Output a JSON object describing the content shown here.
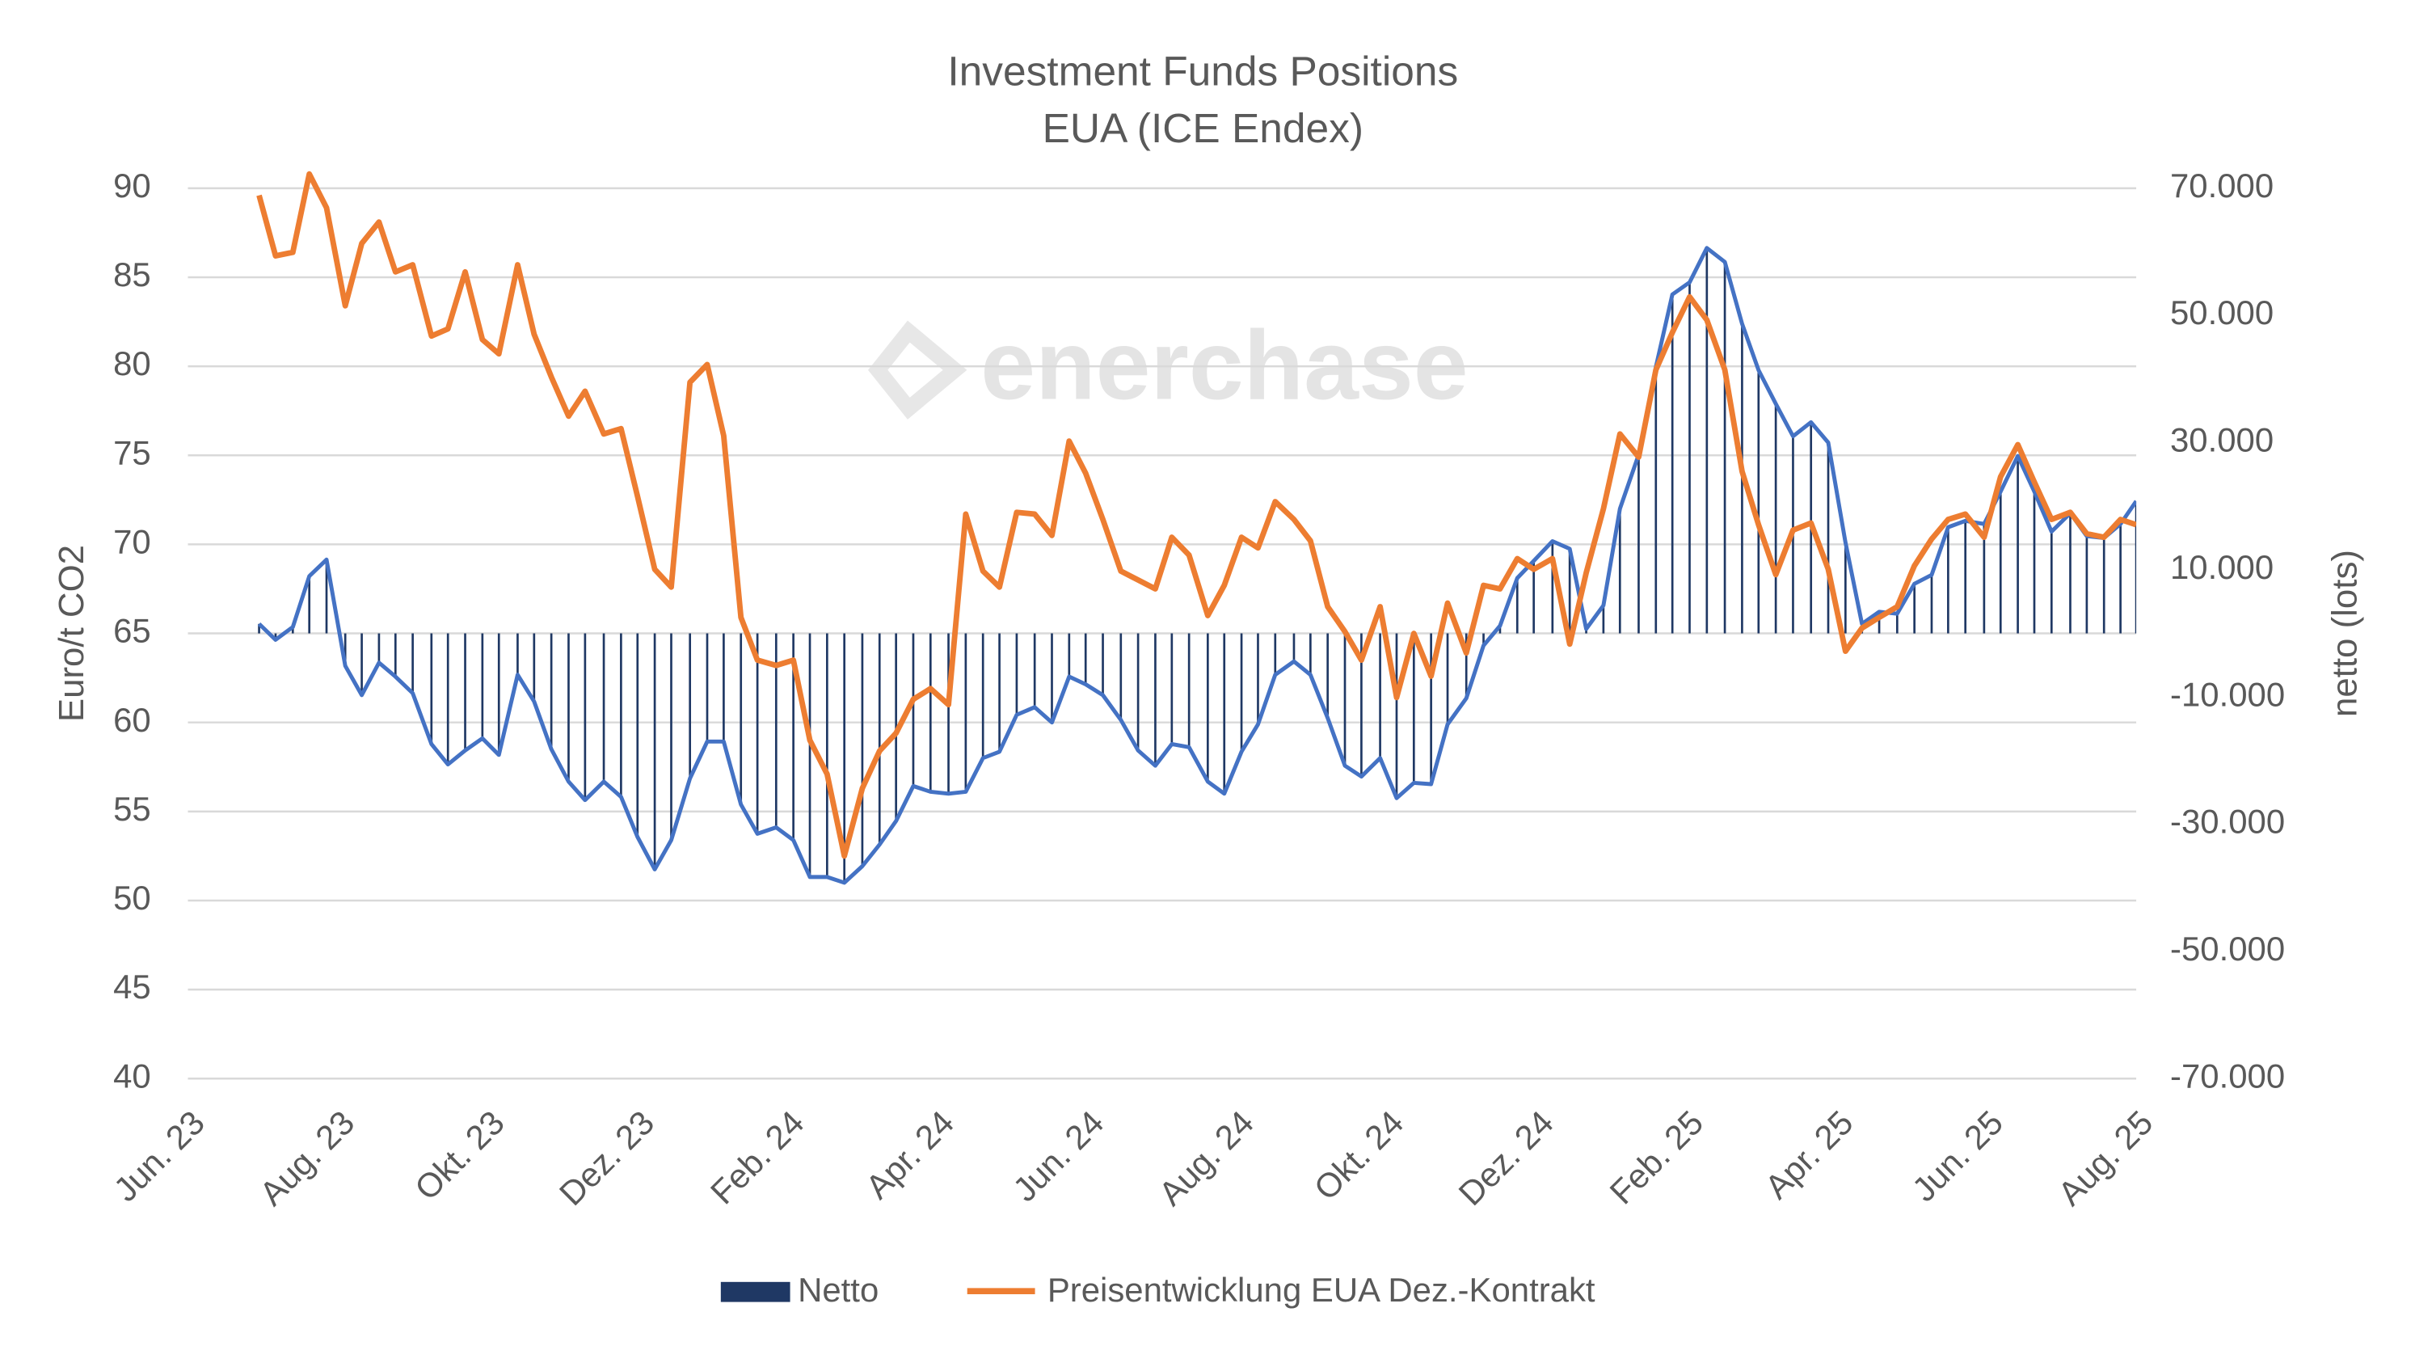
{
  "chart_data": {
    "type": "combo",
    "title": [
      "Investment Funds Positions",
      "EUA (ICE Endex)"
    ],
    "watermark": "enerchase",
    "ylabel": "Euro/t CO2",
    "y2label": "netto (lots)",
    "xlim": [
      0,
      26
    ],
    "xticks": [
      {
        "value": 0,
        "label": "Jun. 23"
      },
      {
        "value": 2,
        "label": "Aug. 23"
      },
      {
        "value": 4,
        "label": "Okt. 23"
      },
      {
        "value": 6,
        "label": "Dez. 23"
      },
      {
        "value": 8,
        "label": "Feb. 24"
      },
      {
        "value": 10,
        "label": "Apr. 24"
      },
      {
        "value": 12,
        "label": "Jun. 24"
      },
      {
        "value": 14,
        "label": "Aug. 24"
      },
      {
        "value": 16,
        "label": "Okt. 24"
      },
      {
        "value": 18,
        "label": "Dez. 24"
      },
      {
        "value": 20,
        "label": "Feb. 25"
      },
      {
        "value": 22,
        "label": "Apr. 25"
      },
      {
        "value": 24,
        "label": "Jun. 25"
      },
      {
        "value": 26,
        "label": "Aug. 25"
      }
    ],
    "ylim": [
      40,
      90
    ],
    "yticks": [
      40,
      45,
      50,
      55,
      60,
      65,
      70,
      75,
      80,
      85,
      90
    ],
    "y2lim": [
      -70000,
      70000
    ],
    "y2ticks": [
      {
        "value": -70000,
        "label": "-70.000"
      },
      {
        "value": -50000,
        "label": "-50.000"
      },
      {
        "value": -30000,
        "label": "-30.000"
      },
      {
        "value": -10000,
        "label": "-10.000"
      },
      {
        "value": 10000,
        "label": "10.000"
      },
      {
        "value": 30000,
        "label": "30.000"
      },
      {
        "value": 50000,
        "label": "50.000"
      },
      {
        "value": 70000,
        "label": "70.000"
      }
    ],
    "grid": true,
    "legend": "bottom",
    "x": [
      0.95,
      1.17,
      1.4,
      1.62,
      1.85,
      2.1,
      2.32,
      2.55,
      2.77,
      3.0,
      3.25,
      3.47,
      3.7,
      3.93,
      4.15,
      4.4,
      4.62,
      4.85,
      5.08,
      5.3,
      5.55,
      5.78,
      6.0,
      6.23,
      6.45,
      6.7,
      6.93,
      7.15,
      7.38,
      7.6,
      7.85,
      8.08,
      8.3,
      8.53,
      8.76,
      9.0,
      9.23,
      9.45,
      9.68,
      9.91,
      10.15,
      10.38,
      10.61,
      10.83,
      11.06,
      11.3,
      11.53,
      11.76,
      11.98,
      12.21,
      12.45,
      12.68,
      12.91,
      13.13,
      13.36,
      13.61,
      13.83,
      14.06,
      14.28,
      14.51,
      14.76,
      14.98,
      15.21,
      15.44,
      15.66,
      15.91,
      16.13,
      16.36,
      16.59,
      16.81,
      17.06,
      17.29,
      17.51,
      17.74,
      17.96,
      18.21,
      18.44,
      18.66,
      18.89,
      19.11,
      19.36,
      19.59,
      19.81,
      20.04,
      20.27,
      20.51,
      20.74,
      20.96,
      21.19,
      21.42,
      21.66,
      21.89,
      22.12,
      22.34,
      22.57,
      22.81,
      23.04,
      23.27,
      23.49,
      23.72,
      23.97,
      24.19,
      24.42,
      24.64,
      24.87,
      25.12,
      25.34,
      25.57,
      25.79,
      26.0
    ],
    "series": [
      {
        "name": "Netto",
        "type": "bar",
        "axis": "y2",
        "color": "#1f3864",
        "line_color": "#4472c4",
        "values": [
          1500,
          -1000,
          1000,
          9000,
          11600,
          -5100,
          -9700,
          -4600,
          -6800,
          -9400,
          -17400,
          -20600,
          -18400,
          -16500,
          -19100,
          -6500,
          -10700,
          -18200,
          -23300,
          -26200,
          -23300,
          -25700,
          -32000,
          -37100,
          -32500,
          -22800,
          -17000,
          -17000,
          -26900,
          -31500,
          -30500,
          -32500,
          -38300,
          -38300,
          -39200,
          -36600,
          -33200,
          -29500,
          -24000,
          -24900,
          -25200,
          -24900,
          -19600,
          -18600,
          -12800,
          -11600,
          -14000,
          -6800,
          -8000,
          -9700,
          -13600,
          -18400,
          -20800,
          -17400,
          -17900,
          -23300,
          -25200,
          -18600,
          -14300,
          -6500,
          -4400,
          -6500,
          -13300,
          -20800,
          -22500,
          -19600,
          -25900,
          -23500,
          -23700,
          -14300,
          -10200,
          -1900,
          1200,
          8700,
          11400,
          14500,
          13300,
          700,
          4400,
          19600,
          28100,
          41900,
          53300,
          55200,
          60600,
          58400,
          48700,
          41400,
          36100,
          31000,
          33200,
          30000,
          14300,
          1500,
          3400,
          3100,
          7800,
          9200,
          16700,
          17700,
          17200,
          22300,
          27900,
          22300,
          16000,
          18900,
          15300,
          15000,
          17200,
          20800
        ]
      },
      {
        "name": "Preisentwicklung EUA Dez.-Kontrakt",
        "type": "line",
        "color": "#ed7d31",
        "values": [
          89.6,
          86.2,
          86.4,
          90.8,
          88.9,
          83.4,
          86.9,
          88.1,
          85.3,
          85.7,
          81.7,
          82.1,
          85.3,
          81.5,
          80.7,
          85.7,
          81.8,
          79.4,
          77.2,
          78.6,
          76.2,
          76.5,
          72.7,
          68.6,
          67.6,
          79.1,
          80.1,
          76.1,
          65.9,
          63.5,
          63.2,
          63.5,
          59.0,
          57.1,
          52.5,
          56.3,
          58.4,
          59.4,
          61.3,
          61.9,
          61.0,
          71.7,
          68.5,
          67.6,
          71.8,
          71.7,
          70.5,
          75.8,
          74.0,
          71.4,
          68.5,
          68.0,
          67.5,
          70.4,
          69.4,
          66.0,
          67.7,
          70.4,
          69.8,
          72.4,
          71.4,
          70.2,
          66.5,
          65.1,
          63.5,
          66.5,
          61.4,
          65.0,
          62.6,
          66.7,
          63.9,
          67.7,
          67.5,
          69.2,
          68.6,
          69.2,
          64.4,
          68.4,
          72.0,
          76.2,
          74.9,
          79.8,
          81.9,
          83.9,
          82.6,
          79.8,
          74.1,
          71.1,
          68.3,
          70.8,
          71.2,
          68.6,
          64.0,
          65.3,
          65.9,
          66.5,
          68.8,
          70.3,
          71.4,
          71.7,
          70.4,
          73.8,
          75.6,
          73.5,
          71.4,
          71.8,
          70.6,
          70.4,
          71.4,
          71.1
        ]
      }
    ]
  }
}
